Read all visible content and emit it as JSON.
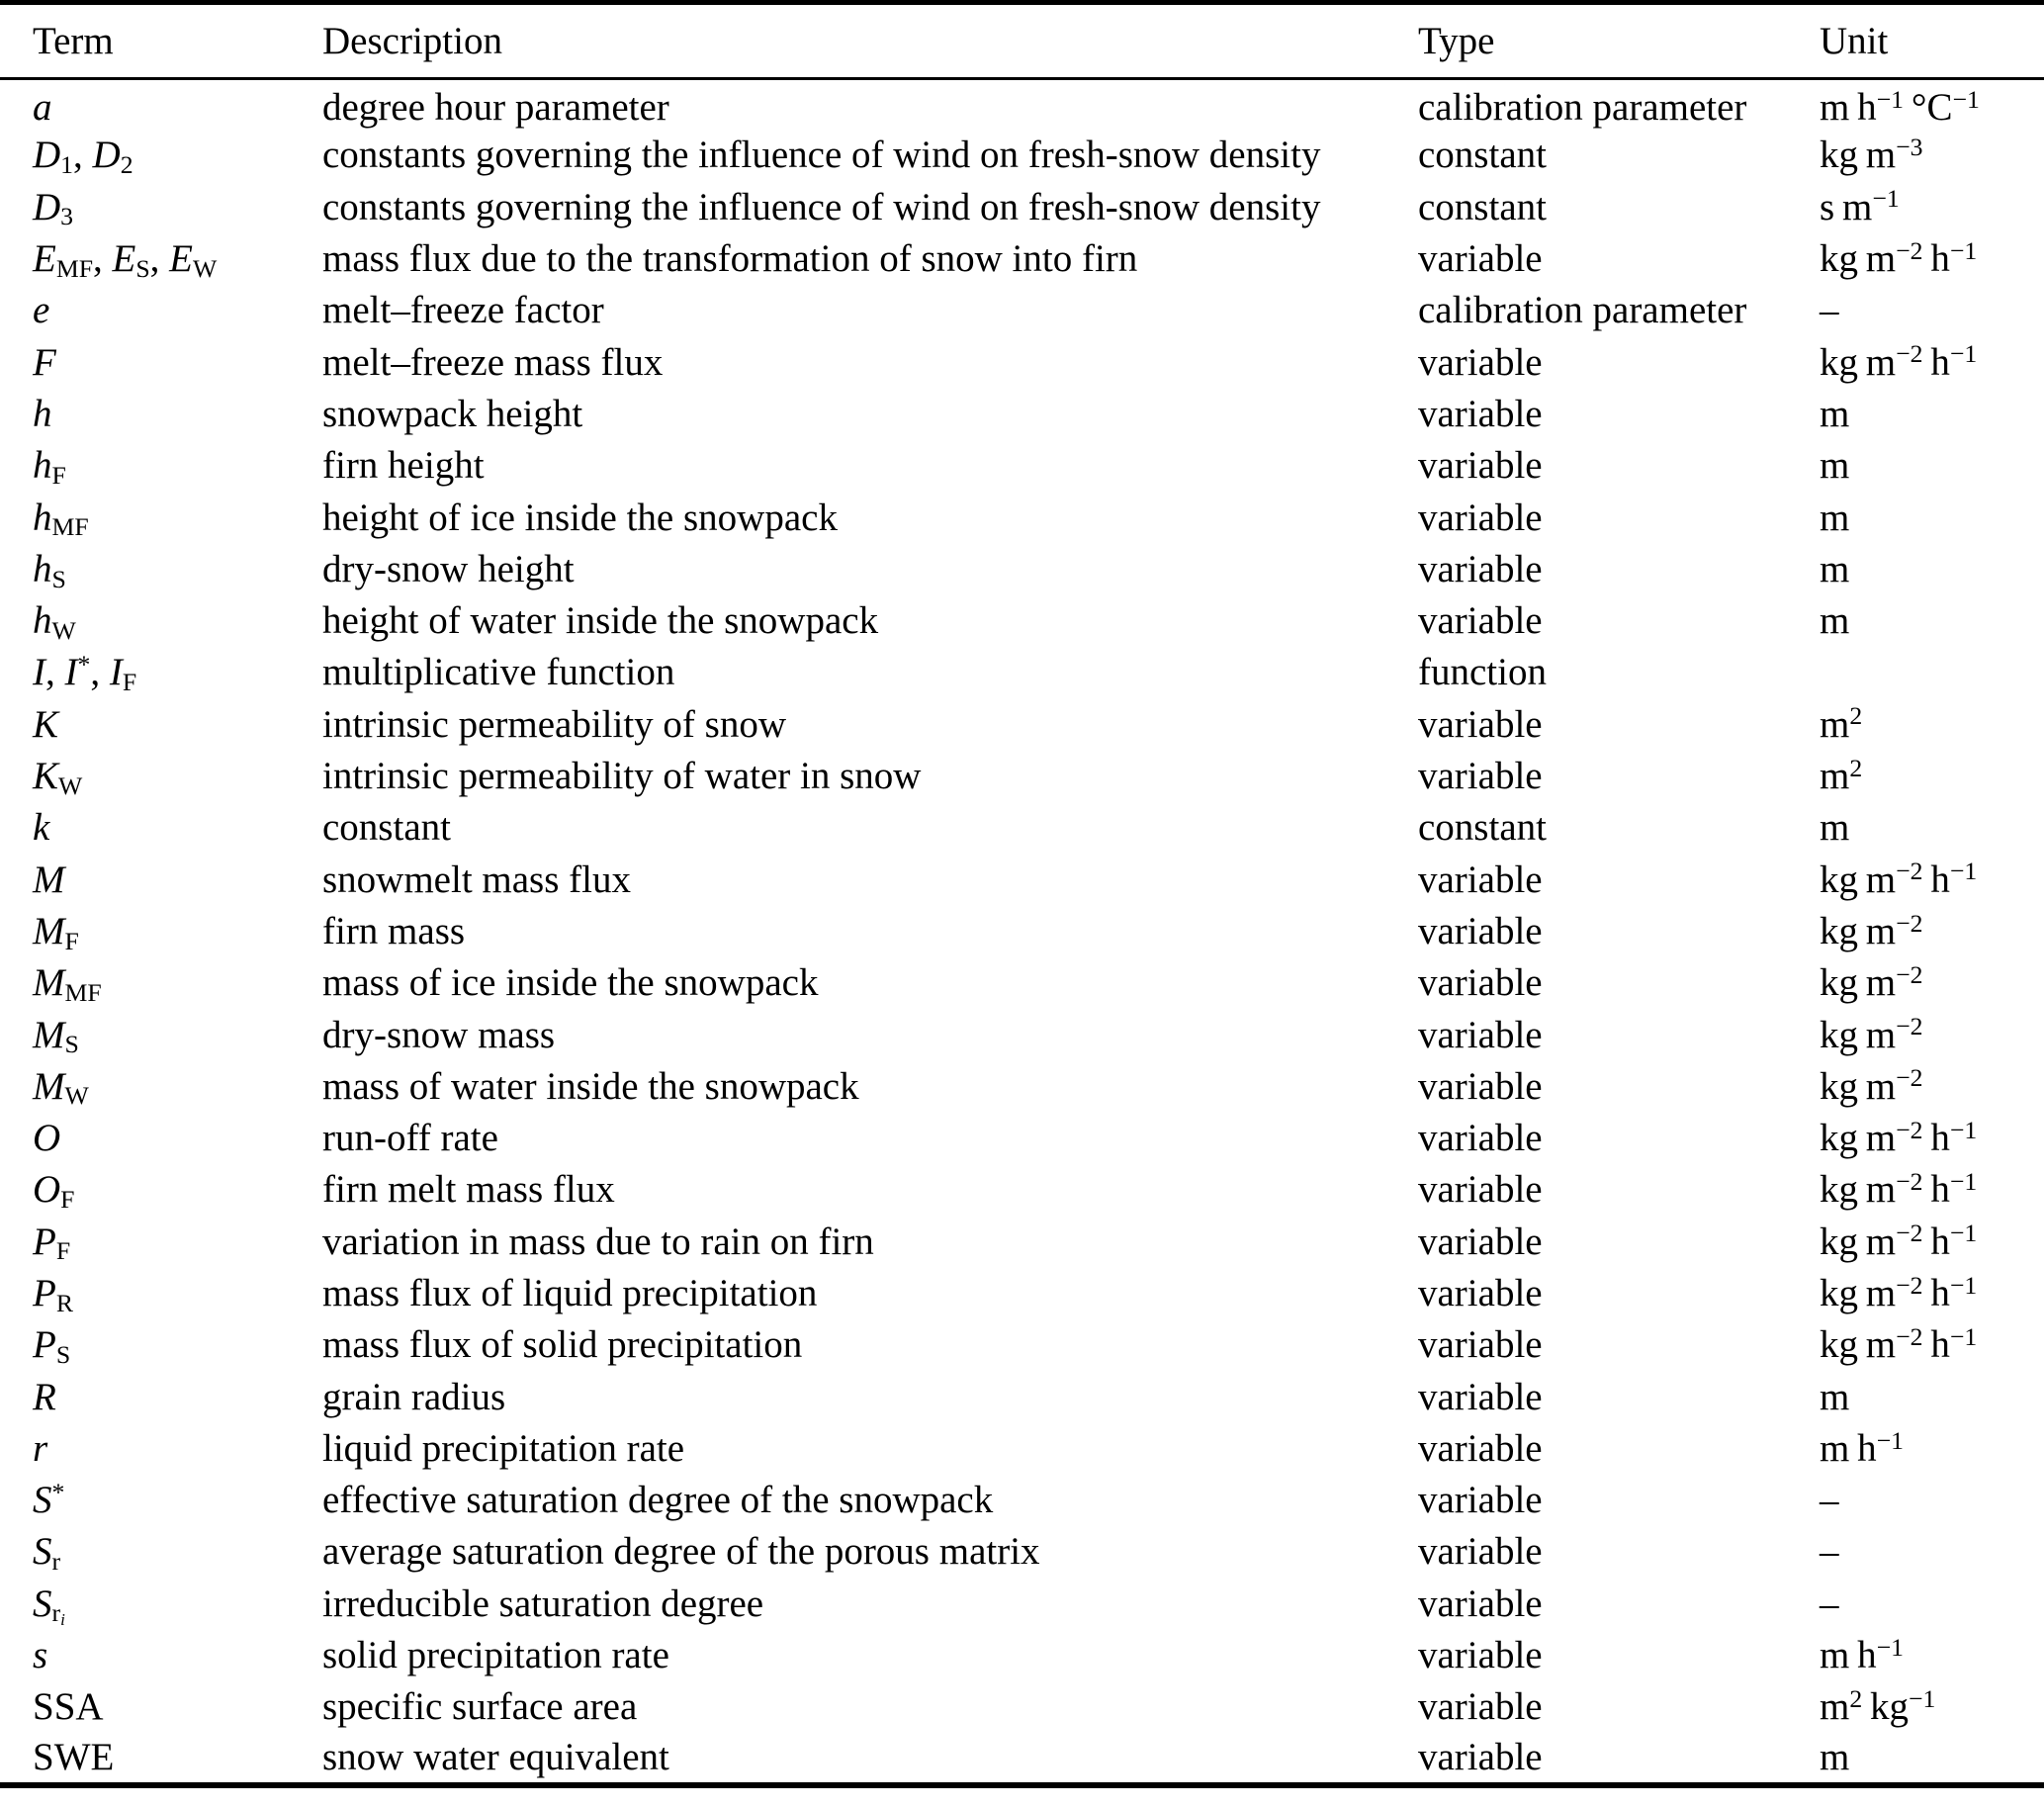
{
  "page": {
    "background": "#ffffff",
    "text_color": "#000000"
  },
  "table": {
    "headers": {
      "term": "Term",
      "description": "Description",
      "type": "Type",
      "unit": "Unit"
    },
    "rows": [
      {
        "term_html": "<i>a</i>",
        "description": "degree hour parameter",
        "type": "calibration parameter",
        "unit_html": "m h<sup>−1</sup> °C<sup>−1</sup>"
      },
      {
        "term_html": "<i>D</i><sub>1</sub>, <i>D</i><sub>2</sub>",
        "description": "constants governing the influence of wind on fresh-snow density",
        "type": "constant",
        "unit_html": "kg m<sup>−3</sup>"
      },
      {
        "term_html": "<i>D</i><sub>3</sub>",
        "description": "constants governing the influence of wind on fresh-snow density",
        "type": "constant",
        "unit_html": "s m<sup>−1</sup>"
      },
      {
        "term_html": "<i>E</i><sub>MF</sub>, <i>E</i><sub>S</sub>, <i>E</i><sub>W</sub>",
        "description": "mass flux due to the transformation of snow into firn",
        "type": "variable",
        "unit_html": "kg m<sup>−2</sup> h<sup>−1</sup>"
      },
      {
        "term_html": "<i>e</i>",
        "description": "melt–freeze factor",
        "type": "calibration parameter",
        "unit_html": "–"
      },
      {
        "term_html": "<i>F</i>",
        "description": "melt–freeze mass flux",
        "type": "variable",
        "unit_html": "kg m<sup>−2</sup> h<sup>−1</sup>"
      },
      {
        "term_html": "<i>h</i>",
        "description": "snowpack height",
        "type": "variable",
        "unit_html": "m"
      },
      {
        "term_html": "<i>h</i><sub>F</sub>",
        "description": "firn height",
        "type": "variable",
        "unit_html": "m"
      },
      {
        "term_html": "<i>h</i><sub>MF</sub>",
        "description": "height of ice inside the snowpack",
        "type": "variable",
        "unit_html": "m"
      },
      {
        "term_html": "<i>h</i><sub>S</sub>",
        "description": "dry-snow height",
        "type": "variable",
        "unit_html": "m"
      },
      {
        "term_html": "<i>h</i><sub>W</sub>",
        "description": "height of water inside the snowpack",
        "type": "variable",
        "unit_html": "m"
      },
      {
        "term_html": "<i>I</i>, <i>I</i><sup>*</sup>, <i>I</i><sub>F</sub>",
        "description": "multiplicative function",
        "type": "function",
        "unit_html": ""
      },
      {
        "term_html": "<i>K</i>",
        "description": "intrinsic permeability of snow",
        "type": "variable",
        "unit_html": "m<sup>2</sup>"
      },
      {
        "term_html": "<i>K</i><sub>W</sub>",
        "description": "intrinsic permeability of water in snow",
        "type": "variable",
        "unit_html": "m<sup>2</sup>"
      },
      {
        "term_html": "<i>k</i>",
        "description": "constant",
        "type": "constant",
        "unit_html": "m"
      },
      {
        "term_html": "<i>M</i>",
        "description": "snowmelt mass flux",
        "type": "variable",
        "unit_html": "kg m<sup>−2</sup> h<sup>−1</sup>"
      },
      {
        "term_html": "<i>M</i><sub>F</sub>",
        "description": "firn mass",
        "type": "variable",
        "unit_html": "kg m<sup>−2</sup>"
      },
      {
        "term_html": "<i>M</i><sub>MF</sub>",
        "description": "mass of ice inside the snowpack",
        "type": "variable",
        "unit_html": "kg m<sup>−2</sup>"
      },
      {
        "term_html": "<i>M</i><sub>S</sub>",
        "description": "dry-snow mass",
        "type": "variable",
        "unit_html": "kg m<sup>−2</sup>"
      },
      {
        "term_html": "<i>M</i><sub>W</sub>",
        "description": "mass of water inside the snowpack",
        "type": "variable",
        "unit_html": "kg m<sup>−2</sup>"
      },
      {
        "term_html": "<i>O</i>",
        "description": "run-off rate",
        "type": "variable",
        "unit_html": "kg m<sup>−2</sup> h<sup>−1</sup>"
      },
      {
        "term_html": "<i>O</i><sub>F</sub>",
        "description": "firn melt mass flux",
        "type": "variable",
        "unit_html": "kg m<sup>−2</sup> h<sup>−1</sup>"
      },
      {
        "term_html": "<i>P</i><sub>F</sub>",
        "description": "variation in mass due to rain on firn",
        "type": "variable",
        "unit_html": "kg m<sup>−2</sup> h<sup>−1</sup>"
      },
      {
        "term_html": "<i>P</i><sub>R</sub>",
        "description": "mass flux of liquid precipitation",
        "type": "variable",
        "unit_html": "kg m<sup>−2</sup> h<sup>−1</sup>"
      },
      {
        "term_html": "<i>P</i><sub>S</sub>",
        "description": "mass flux of solid precipitation",
        "type": "variable",
        "unit_html": "kg m<sup>−2</sup> h<sup>−1</sup>"
      },
      {
        "term_html": "<i>R</i>",
        "description": "grain radius",
        "type": "variable",
        "unit_html": "m"
      },
      {
        "term_html": "<i>r</i>",
        "description": "liquid precipitation rate",
        "type": "variable",
        "unit_html": "m h<sup>−1</sup>"
      },
      {
        "term_html": "<i>S</i><sup>*</sup>",
        "description": "effective saturation degree of the snowpack",
        "type": "variable",
        "unit_html": "–"
      },
      {
        "term_html": "<i>S</i><sub>r</sub>",
        "description": "average saturation degree of the porous matrix",
        "type": "variable",
        "unit_html": "–"
      },
      {
        "term_html": "<i>S</i><sub>r<sub><i>i</i></sub></sub>",
        "description": "irreducible saturation degree",
        "type": "variable",
        "unit_html": "–"
      },
      {
        "term_html": "<i>s</i>",
        "description": "solid precipitation rate",
        "type": "variable",
        "unit_html": "m h<sup>−1</sup>"
      },
      {
        "term_html": "SSA",
        "description": "specific surface area",
        "type": "variable",
        "unit_html": "m<sup>2</sup> kg<sup>−1</sup>"
      },
      {
        "term_html": "SWE",
        "description": "snow water equivalent",
        "type": "variable",
        "unit_html": "m"
      }
    ]
  }
}
